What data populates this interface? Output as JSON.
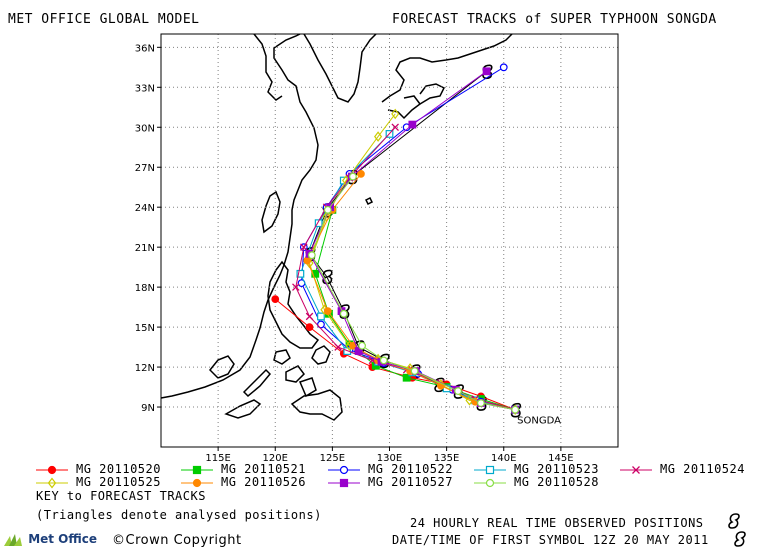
{
  "header": {
    "left_title": "MET OFFICE GLOBAL MODEL",
    "right_title": "FORECAST TRACKS of SUPER TYPHOON SONGDA"
  },
  "map": {
    "lon_range": [
      110,
      150
    ],
    "lat_range": [
      6,
      37
    ],
    "lat_ticks": [
      {
        "value": 9,
        "label": "9N"
      },
      {
        "value": 12,
        "label": "12N"
      },
      {
        "value": 15,
        "label": "15N"
      },
      {
        "value": 18,
        "label": "18N"
      },
      {
        "value": 21,
        "label": "21N"
      },
      {
        "value": 24,
        "label": "24N"
      },
      {
        "value": 27,
        "label": "27N"
      },
      {
        "value": 30,
        "label": "30N"
      },
      {
        "value": 33,
        "label": "33N"
      },
      {
        "value": 36,
        "label": "36N"
      }
    ],
    "lon_ticks": [
      {
        "value": 115,
        "label": "115E"
      },
      {
        "value": 120,
        "label": "120E"
      },
      {
        "value": 125,
        "label": "125E"
      },
      {
        "value": 130,
        "label": "130E"
      },
      {
        "value": 135,
        "label": "135E"
      },
      {
        "value": 140,
        "label": "140E"
      },
      {
        "value": 145,
        "label": "145E"
      }
    ],
    "grid": true,
    "storm_label": "SONGDA",
    "observed_track": [
      [
        141.0,
        8.8
      ],
      [
        138.0,
        9.3
      ],
      [
        136.0,
        10.2
      ],
      [
        134.3,
        10.7
      ],
      [
        132.2,
        11.7
      ],
      [
        129.5,
        12.5
      ],
      [
        127.3,
        13.5
      ],
      [
        126.0,
        16.2
      ],
      [
        124.5,
        18.8
      ],
      [
        123.0,
        20.5
      ],
      [
        124.5,
        23.8
      ],
      [
        126.7,
        26.3
      ],
      [
        138.5,
        34.2
      ]
    ],
    "colors": {
      "coast": "#000000",
      "grid": "#808080",
      "observed": "#000000"
    }
  },
  "forecast_tracks": [
    {
      "name": "MG 20110520",
      "color": "#ff0000",
      "symbol": "filled-circle",
      "points": [
        [
          141.0,
          8.8
        ],
        [
          138.0,
          9.8
        ],
        [
          135.0,
          10.7
        ],
        [
          132.0,
          11.2
        ],
        [
          128.5,
          12.0
        ],
        [
          126.0,
          13.0
        ],
        [
          123.0,
          15.0
        ],
        [
          120.0,
          17.1
        ]
      ]
    },
    {
      "name": "MG 20110521",
      "color": "#00cc00",
      "symbol": "filled-square",
      "points": [
        [
          141.0,
          8.8
        ],
        [
          138.0,
          9.6
        ],
        [
          135.0,
          10.5
        ],
        [
          131.5,
          11.2
        ],
        [
          128.8,
          12.1
        ],
        [
          126.5,
          13.7
        ],
        [
          124.7,
          16.0
        ],
        [
          123.5,
          19.0
        ],
        [
          125.0,
          23.8
        ]
      ]
    },
    {
      "name": "MG 20110522",
      "color": "#0000ff",
      "symbol": "open-circle",
      "points": [
        [
          141.0,
          8.8
        ],
        [
          138.0,
          9.4
        ],
        [
          135.5,
          10.3
        ],
        [
          132.5,
          11.5
        ],
        [
          129.5,
          12.3
        ],
        [
          126.5,
          13.3
        ],
        [
          124.0,
          15.2
        ],
        [
          122.3,
          18.3
        ],
        [
          122.5,
          21.0
        ],
        [
          124.5,
          24.0
        ],
        [
          126.5,
          26.5
        ],
        [
          131.5,
          30.0
        ],
        [
          140.0,
          34.5
        ]
      ]
    },
    {
      "name": "MG 20110523",
      "color": "#00aacc",
      "symbol": "open-square",
      "points": [
        [
          141.0,
          8.8
        ],
        [
          137.5,
          9.5
        ],
        [
          135.0,
          10.4
        ],
        [
          132.0,
          11.6
        ],
        [
          129.0,
          12.4
        ],
        [
          126.3,
          13.2
        ],
        [
          124.0,
          15.8
        ],
        [
          122.2,
          19.0
        ],
        [
          123.8,
          22.8
        ],
        [
          126.0,
          26.0
        ],
        [
          130.0,
          29.5
        ]
      ]
    },
    {
      "name": "MG 20110524",
      "color": "#cc0066",
      "symbol": "x",
      "points": [
        [
          141.0,
          8.8
        ],
        [
          137.5,
          9.6
        ],
        [
          134.5,
          10.8
        ],
        [
          131.5,
          11.8
        ],
        [
          128.5,
          12.5
        ],
        [
          125.5,
          13.5
        ],
        [
          123.0,
          15.8
        ],
        [
          121.8,
          18.0
        ],
        [
          122.5,
          21.0
        ],
        [
          124.5,
          24.0
        ],
        [
          126.5,
          26.2
        ],
        [
          130.5,
          30.0
        ]
      ]
    },
    {
      "name": "MG 20110525",
      "color": "#cccc00",
      "symbol": "diamond",
      "points": [
        [
          141.0,
          8.8
        ],
        [
          137.0,
          9.5
        ],
        [
          134.5,
          10.7
        ],
        [
          131.8,
          11.9
        ],
        [
          129.0,
          12.6
        ],
        [
          126.5,
          13.6
        ],
        [
          124.3,
          16.3
        ],
        [
          123.0,
          19.8
        ],
        [
          124.5,
          23.3
        ],
        [
          126.2,
          26.0
        ],
        [
          129.0,
          29.3
        ],
        [
          130.5,
          31.0
        ]
      ]
    },
    {
      "name": "MG 20110526",
      "color": "#ff8800",
      "symbol": "filled-circle",
      "points": [
        [
          141.0,
          8.8
        ],
        [
          137.5,
          9.4
        ],
        [
          134.5,
          10.6
        ],
        [
          131.8,
          11.7
        ],
        [
          129.0,
          12.5
        ],
        [
          126.8,
          13.6
        ],
        [
          124.6,
          16.2
        ],
        [
          122.8,
          20.0
        ],
        [
          125.0,
          23.8
        ],
        [
          127.5,
          26.5
        ]
      ]
    },
    {
      "name": "MG 20110527",
      "color": "#9900cc",
      "symbol": "filled-square",
      "points": [
        [
          141.0,
          8.8
        ],
        [
          138.0,
          9.3
        ],
        [
          135.8,
          10.3
        ],
        [
          132.3,
          11.7
        ],
        [
          129.3,
          12.4
        ],
        [
          127.3,
          13.2
        ],
        [
          125.8,
          16.2
        ],
        [
          123.0,
          20.5
        ],
        [
          124.8,
          24.0
        ],
        [
          126.7,
          26.3
        ],
        [
          132.0,
          30.2
        ],
        [
          138.5,
          34.2
        ]
      ]
    },
    {
      "name": "MG 20110528",
      "color": "#88dd44",
      "symbol": "open-circle",
      "points": [
        [
          141.0,
          8.8
        ],
        [
          138.0,
          9.3
        ],
        [
          136.0,
          10.2
        ],
        [
          132.2,
          11.7
        ],
        [
          129.5,
          12.5
        ],
        [
          127.6,
          13.6
        ],
        [
          126.0,
          16.0
        ],
        [
          123.2,
          20.4
        ],
        [
          124.6,
          23.8
        ],
        [
          126.8,
          26.3
        ]
      ]
    }
  ],
  "legend": {
    "key_label": "KEY to FORECAST TRACKS",
    "triangle_note": "(Triangles denote analysed positions)"
  },
  "footer": {
    "observed_note": "24 HOURLY REAL TIME OBSERVED POSITIONS",
    "first_symbol": "DATE/TIME OF FIRST SYMBOL 12Z 20 MAY 2011",
    "copyright": "©Crown Copyright",
    "logo_text": "Met Office"
  }
}
